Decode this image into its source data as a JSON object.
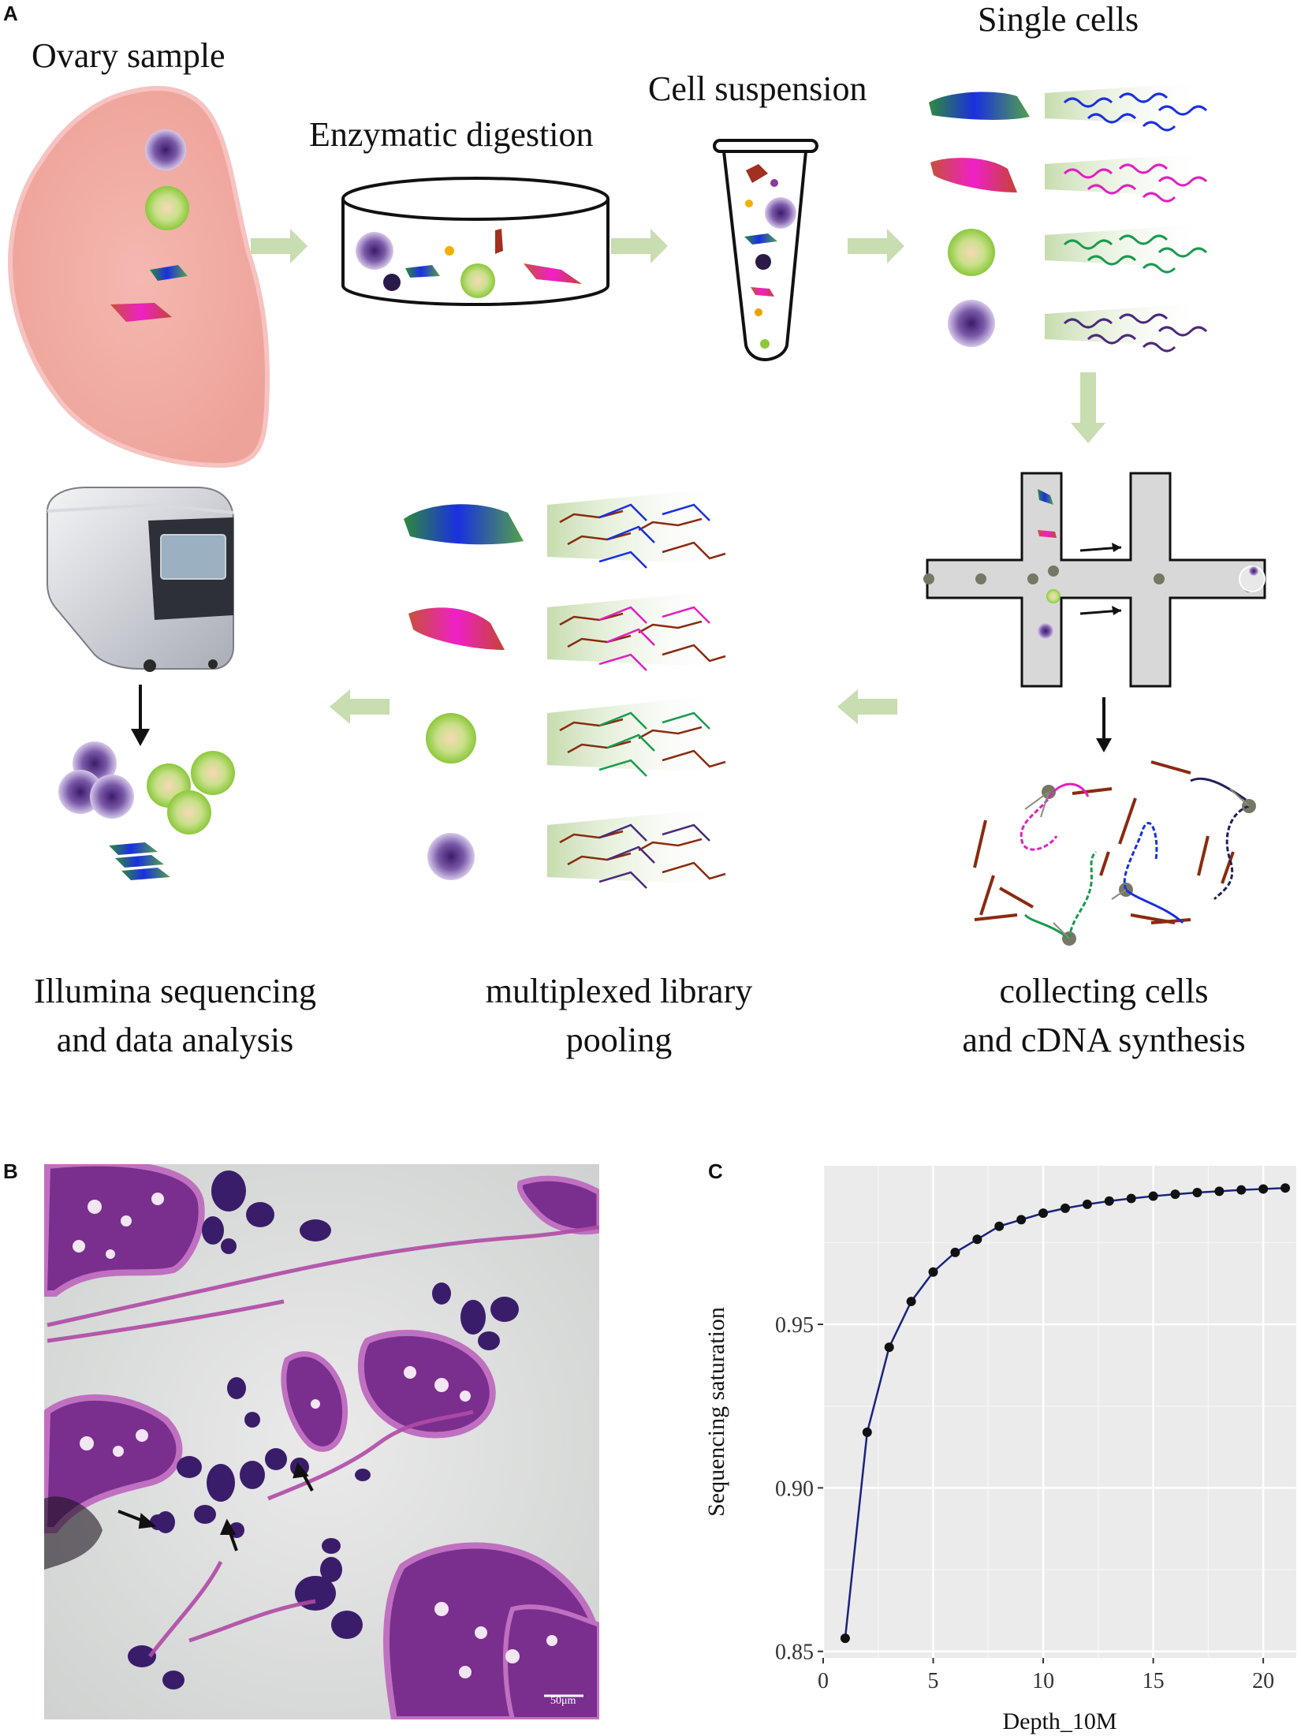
{
  "panels": {
    "a": "A",
    "b": "B",
    "c": "C"
  },
  "workflow": {
    "ovary_sample": "Ovary sample",
    "enzymatic_digestion": "Enzymatic digestion",
    "cell_suspension": "Cell suspension",
    "single_cells": "Single cells",
    "collecting_line1": "collecting cells",
    "collecting_line2": "and cDNA synthesis",
    "pooling_line1": "multiplexed library",
    "pooling_line2": "pooling",
    "sequencing_line1": "Illumina sequencing",
    "sequencing_line2": "and data analysis"
  },
  "histology": {
    "scale_bar": "50μm"
  },
  "colors": {
    "arrow_green": "#c9ddb0",
    "chart_bg": "#ebebeb",
    "line": "#1a237e",
    "blue_cell": "#1e3fd6",
    "magenta_cell": "#e020c0",
    "green_cell": "#9ed060",
    "purple_cell": "#6a4a9a"
  },
  "chart_data": {
    "type": "line",
    "xlabel": "Depth_10M",
    "ylabel": "Sequencing saturation",
    "xlim": [
      0,
      21.5
    ],
    "ylim": [
      0.848,
      0.9985
    ],
    "xticks": [
      0,
      5,
      10,
      15,
      20
    ],
    "yticks": [
      0.85,
      0.9,
      0.95
    ],
    "ytick_labels": [
      "0.85",
      "0.90",
      "0.95"
    ],
    "grid": true,
    "x": [
      1,
      2,
      3,
      4,
      5,
      6,
      7,
      8,
      9,
      10,
      11,
      12,
      13,
      14,
      15,
      16,
      17,
      18,
      19,
      20,
      21
    ],
    "y": [
      0.854,
      0.917,
      0.943,
      0.957,
      0.966,
      0.972,
      0.976,
      0.98,
      0.982,
      0.984,
      0.9855,
      0.9867,
      0.9877,
      0.9885,
      0.9892,
      0.9898,
      0.9903,
      0.9907,
      0.9911,
      0.9914,
      0.9917
    ]
  }
}
